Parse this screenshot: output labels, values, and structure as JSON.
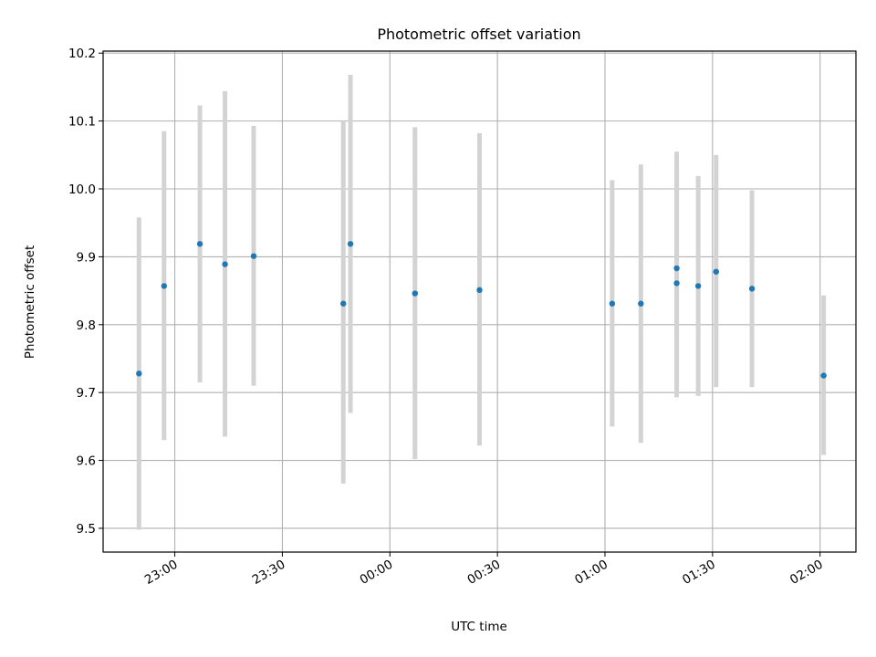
{
  "chart_data": {
    "type": "scatter",
    "title": "Photometric offset variation",
    "xlabel": "UTC time",
    "ylabel": "Photometric offset",
    "x_tick_labels": [
      "23:00",
      "23:30",
      "00:00",
      "00:30",
      "01:00",
      "01:30",
      "02:00"
    ],
    "y_tick_labels": [
      "9.5",
      "9.6",
      "9.7",
      "9.8",
      "9.9",
      "10.0",
      "10.1",
      "10.2"
    ],
    "xlim": [
      "22:40",
      "02:10"
    ],
    "ylim": [
      9.465,
      10.203
    ],
    "grid": true,
    "colors": {
      "point": "#1f77b4",
      "errorbar": "#d3d3d3",
      "grid": "#b0b0b0"
    },
    "series": [
      {
        "points": [
          {
            "x": "22:50",
            "y": 9.728,
            "y_low": 9.498,
            "y_high": 9.958
          },
          {
            "x": "22:57",
            "y": 9.857,
            "y_low": 9.63,
            "y_high": 10.085
          },
          {
            "x": "23:07",
            "y": 9.919,
            "y_low": 9.715,
            "y_high": 10.123
          },
          {
            "x": "23:14",
            "y": 9.889,
            "y_low": 9.635,
            "y_high": 10.144
          },
          {
            "x": "23:22",
            "y": 9.901,
            "y_low": 9.71,
            "y_high": 10.093
          },
          {
            "x": "23:47",
            "y": 9.831,
            "y_low": 9.566,
            "y_high": 10.1
          },
          {
            "x": "23:49",
            "y": 9.919,
            "y_low": 9.67,
            "y_high": 10.168
          },
          {
            "x": "00:07",
            "y": 9.846,
            "y_low": 9.602,
            "y_high": 10.091
          },
          {
            "x": "00:25",
            "y": 9.851,
            "y_low": 9.622,
            "y_high": 10.082
          },
          {
            "x": "01:02",
            "y": 9.831,
            "y_low": 9.65,
            "y_high": 10.013
          },
          {
            "x": "01:10",
            "y": 9.831,
            "y_low": 9.626,
            "y_high": 10.036
          },
          {
            "x": "01:20",
            "y": 9.861,
            "y_low": 9.693,
            "y_high": 10.03
          },
          {
            "x": "01:20",
            "y": 9.883,
            "y_low": 9.711,
            "y_high": 10.055
          },
          {
            "x": "01:26",
            "y": 9.857,
            "y_low": 9.695,
            "y_high": 10.019
          },
          {
            "x": "01:31",
            "y": 9.878,
            "y_low": 9.708,
            "y_high": 10.05
          },
          {
            "x": "01:41",
            "y": 9.853,
            "y_low": 9.708,
            "y_high": 9.998
          },
          {
            "x": "02:01",
            "y": 9.725,
            "y_low": 9.608,
            "y_high": 9.843
          }
        ]
      }
    ]
  }
}
